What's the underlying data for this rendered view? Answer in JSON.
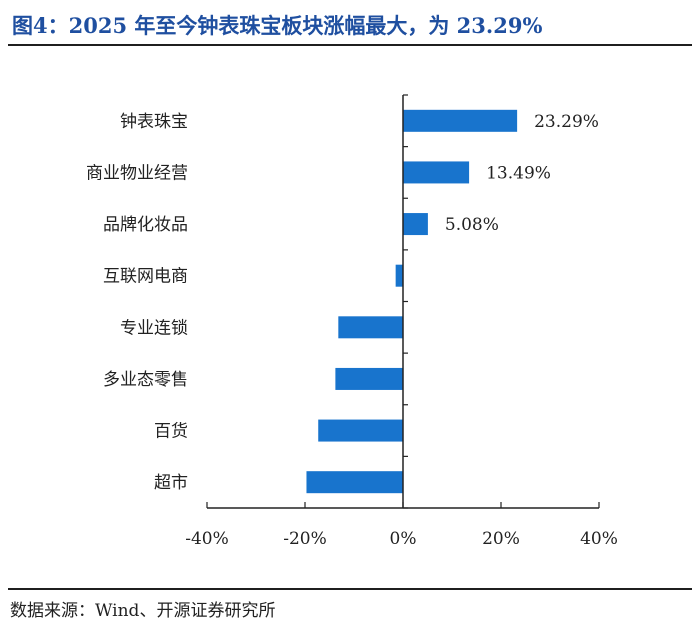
{
  "title": "图4：2025 年至今钟表珠宝板块涨幅最大，为 23.29%",
  "source": "数据来源：Wind、开源证券研究所",
  "chart_data": {
    "type": "bar",
    "orientation": "horizontal",
    "categories": [
      "钟表珠宝",
      "商业物业经营",
      "品牌化妆品",
      "互联网电商",
      "专业连锁",
      "多业态零售",
      "百货",
      "超市"
    ],
    "values": [
      23.29,
      13.49,
      5.08,
      -1.5,
      -13.2,
      -13.8,
      -17.3,
      -19.7
    ],
    "data_labels": [
      "23.29%",
      "13.49%",
      "5.08%",
      "",
      "",
      "",
      "",
      ""
    ],
    "xlim": [
      -40,
      40
    ],
    "xticks": [
      -40,
      -20,
      0,
      20,
      40
    ],
    "xtick_labels": [
      "-40%",
      "-20%",
      "0%",
      "20%",
      "40%"
    ],
    "bar_color": "#1874cd",
    "grid": false,
    "legend": "none"
  }
}
